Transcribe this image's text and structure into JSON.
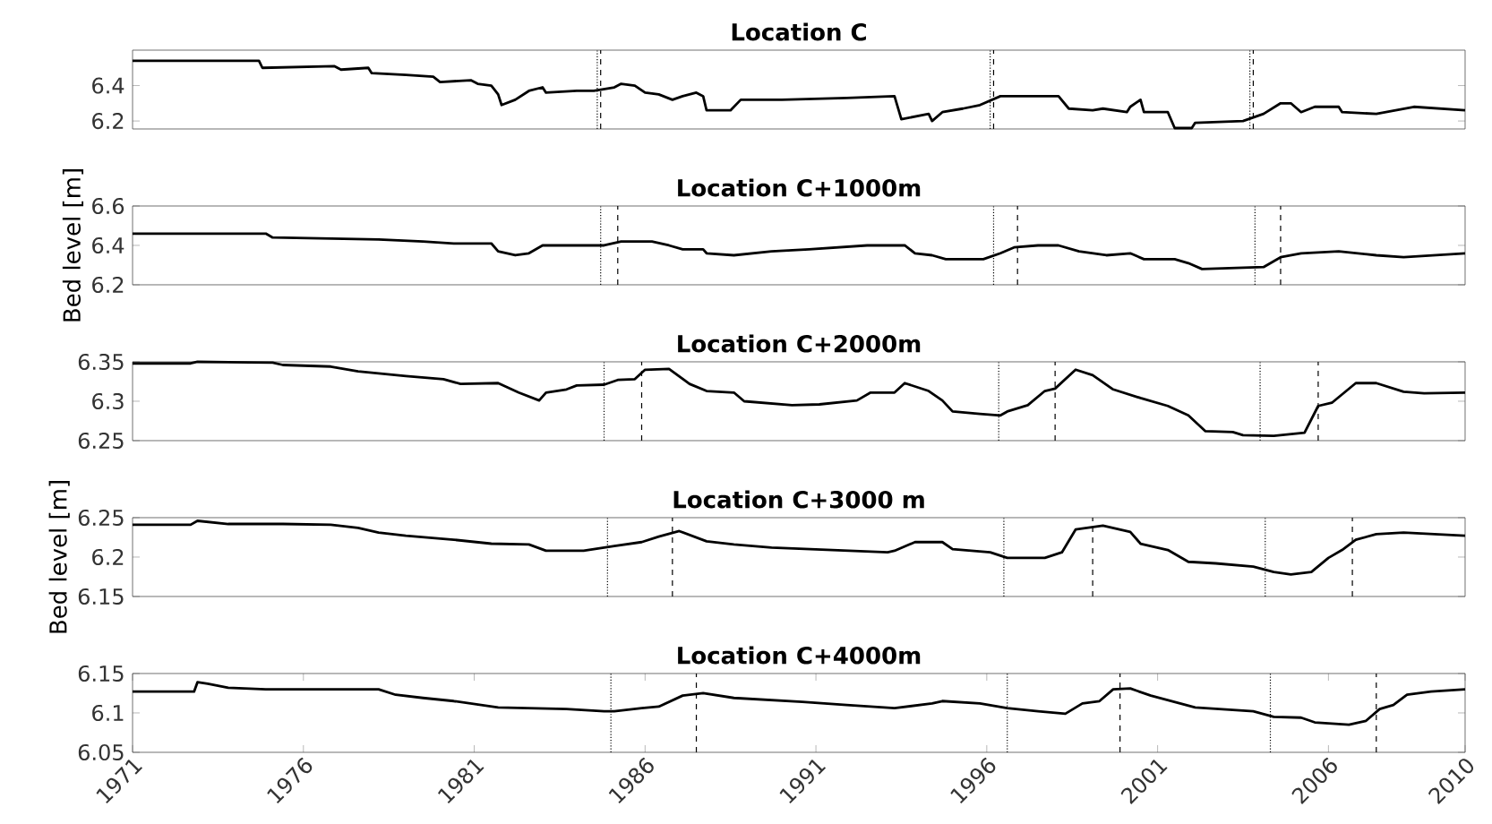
{
  "chart_data": [
    {
      "type": "line",
      "title": "Location C",
      "color": "#000000",
      "xlim": [
        1971,
        2010
      ],
      "ylim": [
        6.155,
        6.6
      ],
      "yticks": [
        6.2,
        6.4
      ],
      "tick_labels": "y",
      "x": [
        1971.0,
        1974.7,
        1974.8,
        1976.9,
        1977.1,
        1977.9,
        1978.0,
        1979.0,
        1979.8,
        1980.0,
        1980.9,
        1981.1,
        1981.5,
        1981.7,
        1981.8,
        1982.2,
        1982.6,
        1983.0,
        1983.1,
        1984.0,
        1984.5,
        1985.1,
        1985.3,
        1985.7,
        1986.0,
        1986.4,
        1986.8,
        1987.1,
        1987.5,
        1987.7,
        1987.8,
        1988.5,
        1988.8,
        1990.0,
        1991.9,
        1993.3,
        1993.5,
        1994.3,
        1994.4,
        1994.7,
        1995.3,
        1995.8,
        1996.4,
        1996.9,
        1998.1,
        1998.4,
        1999.1,
        1999.4,
        2000.1,
        2000.2,
        2000.5,
        2000.6,
        2001.3,
        2001.5,
        2002.0,
        2002.1,
        2003.5,
        2004.1,
        2004.6,
        2004.9,
        2005.2,
        2005.6,
        2006.3,
        2006.4,
        2007.4,
        2008.5,
        2010.0
      ],
      "values": [
        6.54,
        6.54,
        6.5,
        6.51,
        6.49,
        6.5,
        6.47,
        6.46,
        6.45,
        6.42,
        6.43,
        6.41,
        6.4,
        6.35,
        6.29,
        6.32,
        6.37,
        6.39,
        6.36,
        6.37,
        6.37,
        6.39,
        6.41,
        6.4,
        6.36,
        6.35,
        6.32,
        6.34,
        6.36,
        6.34,
        6.26,
        6.26,
        6.32,
        6.32,
        6.33,
        6.34,
        6.21,
        6.24,
        6.2,
        6.25,
        6.27,
        6.29,
        6.34,
        6.34,
        6.34,
        6.27,
        6.26,
        6.27,
        6.25,
        6.28,
        6.32,
        6.25,
        6.25,
        6.16,
        6.16,
        6.19,
        6.2,
        6.24,
        6.3,
        6.3,
        6.25,
        6.28,
        6.28,
        6.25,
        6.24,
        6.28,
        6.26
      ],
      "ref_lines": [
        {
          "axis": "x",
          "value": 1984.6,
          "line_style": "dotted",
          "color": "#000000"
        },
        {
          "axis": "x",
          "value": 1984.7,
          "line_style": "dashed",
          "color": "#000000"
        },
        {
          "axis": "x",
          "value": 1996.1,
          "line_style": "dotted",
          "color": "#000000"
        },
        {
          "axis": "x",
          "value": 1996.2,
          "line_style": "dashed",
          "color": "#000000"
        },
        {
          "axis": "x",
          "value": 2003.7,
          "line_style": "dotted",
          "color": "#000000"
        },
        {
          "axis": "x",
          "value": 2003.8,
          "line_style": "dashed",
          "color": "#000000"
        }
      ]
    },
    {
      "type": "line",
      "title": "Location C+1000m",
      "ylabel": "Bed level [m]",
      "color": "#000000",
      "xlim": [
        1971,
        2010
      ],
      "ylim": [
        6.2,
        6.6
      ],
      "yticks": [
        6.2,
        6.4,
        6.6
      ],
      "tick_labels": "y",
      "x": [
        1971.0,
        1974.9,
        1975.1,
        1978.2,
        1979.5,
        1980.4,
        1981.5,
        1981.7,
        1982.2,
        1982.6,
        1983.0,
        1984.8,
        1985.3,
        1986.2,
        1986.7,
        1987.1,
        1987.7,
        1987.8,
        1988.6,
        1989.7,
        1990.8,
        1992.5,
        1993.1,
        1993.6,
        1993.9,
        1994.4,
        1994.8,
        1995.9,
        1996.4,
        1996.8,
        1997.5,
        1998.1,
        1998.7,
        1999.5,
        2000.2,
        2000.6,
        2001.5,
        2001.9,
        2002.3,
        2004.1,
        2004.6,
        2005.2,
        2006.3,
        2007.4,
        2008.2,
        2010.0
      ],
      "values": [
        6.46,
        6.46,
        6.44,
        6.43,
        6.42,
        6.41,
        6.41,
        6.37,
        6.35,
        6.36,
        6.4,
        6.4,
        6.42,
        6.42,
        6.4,
        6.38,
        6.38,
        6.36,
        6.35,
        6.37,
        6.38,
        6.4,
        6.4,
        6.4,
        6.36,
        6.35,
        6.33,
        6.33,
        6.36,
        6.39,
        6.4,
        6.4,
        6.37,
        6.35,
        6.36,
        6.33,
        6.33,
        6.31,
        6.28,
        6.29,
        6.34,
        6.36,
        6.37,
        6.35,
        6.34,
        6.36
      ],
      "ref_lines": [
        {
          "axis": "x",
          "value": 1984.7,
          "line_style": "dotted",
          "color": "#000000"
        },
        {
          "axis": "x",
          "value": 1985.2,
          "line_style": "dashed",
          "color": "#000000"
        },
        {
          "axis": "x",
          "value": 1996.2,
          "line_style": "dotted",
          "color": "#000000"
        },
        {
          "axis": "x",
          "value": 1996.9,
          "line_style": "dashed",
          "color": "#000000"
        },
        {
          "axis": "x",
          "value": 2003.85,
          "line_style": "dotted",
          "color": "#000000"
        },
        {
          "axis": "x",
          "value": 2004.6,
          "line_style": "dashed",
          "color": "#000000"
        }
      ]
    },
    {
      "type": "line",
      "title": "Location C+2000m",
      "color": "#000000",
      "xlim": [
        1971,
        2010
      ],
      "ylim": [
        6.25,
        6.35
      ],
      "yticks": [
        6.25,
        6.3,
        6.35
      ],
      "tick_labels": "y",
      "x": [
        1971.0,
        1972.7,
        1972.9,
        1975.1,
        1975.4,
        1976.8,
        1977.6,
        1979.0,
        1980.1,
        1980.6,
        1981.7,
        1982.3,
        1982.9,
        1983.1,
        1983.7,
        1984.0,
        1984.8,
        1985.2,
        1985.7,
        1986.0,
        1986.7,
        1987.3,
        1987.8,
        1988.6,
        1988.9,
        1990.3,
        1991.1,
        1992.2,
        1992.6,
        1993.3,
        1993.6,
        1994.3,
        1994.7,
        1995.0,
        1995.8,
        1996.4,
        1996.6,
        1997.2,
        1997.7,
        1998.0,
        1998.6,
        1999.1,
        1999.7,
        2000.5,
        2001.3,
        2001.9,
        2002.4,
        2003.2,
        2003.5,
        2004.4,
        2005.3,
        2005.7,
        2006.1,
        2006.8,
        2007.4,
        2008.2,
        2008.8,
        2010.0
      ],
      "values": [
        6.348,
        6.348,
        6.35,
        6.349,
        6.346,
        6.344,
        6.338,
        6.332,
        6.328,
        6.322,
        6.323,
        6.311,
        6.301,
        6.311,
        6.315,
        6.32,
        6.321,
        6.327,
        6.328,
        6.34,
        6.341,
        6.322,
        6.313,
        6.311,
        6.3,
        6.295,
        6.296,
        6.301,
        6.311,
        6.311,
        6.323,
        6.313,
        6.301,
        6.287,
        6.284,
        6.282,
        6.287,
        6.295,
        6.313,
        6.316,
        6.34,
        6.333,
        6.315,
        6.304,
        6.294,
        6.282,
        6.262,
        6.261,
        6.257,
        6.256,
        6.26,
        6.294,
        6.298,
        6.323,
        6.323,
        6.312,
        6.31,
        6.311
      ],
      "ref_lines": [
        {
          "axis": "x",
          "value": 1984.8,
          "line_style": "dotted",
          "color": "#000000"
        },
        {
          "axis": "x",
          "value": 1985.9,
          "line_style": "dashed",
          "color": "#000000"
        },
        {
          "axis": "x",
          "value": 1996.35,
          "line_style": "dotted",
          "color": "#000000"
        },
        {
          "axis": "x",
          "value": 1998.0,
          "line_style": "dashed",
          "color": "#000000"
        },
        {
          "axis": "x",
          "value": 2004.0,
          "line_style": "dotted",
          "color": "#000000"
        },
        {
          "axis": "x",
          "value": 2005.7,
          "line_style": "dashed",
          "color": "#000000"
        }
      ]
    },
    {
      "type": "line",
      "title": "Location C+3000 m",
      "ylabel": "Bed level [m]",
      "color": "#000000",
      "xlim": [
        1971,
        2010
      ],
      "ylim": [
        6.15,
        6.25
      ],
      "yticks": [
        6.15,
        6.2,
        6.25
      ],
      "tick_labels": "y",
      "x": [
        1971.0,
        1972.7,
        1972.9,
        1973.8,
        1975.4,
        1976.8,
        1977.6,
        1978.2,
        1979.0,
        1980.4,
        1981.5,
        1982.6,
        1983.1,
        1984.2,
        1985.1,
        1985.9,
        1986.4,
        1987.0,
        1987.8,
        1988.6,
        1989.7,
        1991.4,
        1993.1,
        1993.3,
        1993.9,
        1994.7,
        1995.0,
        1996.1,
        1996.6,
        1997.7,
        1998.2,
        1998.6,
        1999.4,
        2000.2,
        2000.5,
        2001.3,
        2001.9,
        2002.7,
        2003.8,
        2004.4,
        2004.9,
        2005.5,
        2006.0,
        2006.4,
        2006.8,
        2007.4,
        2008.2,
        2010.0
      ],
      "values": [
        6.241,
        6.241,
        6.246,
        6.242,
        6.242,
        6.241,
        6.237,
        6.231,
        6.227,
        6.222,
        6.217,
        6.216,
        6.208,
        6.208,
        6.214,
        6.219,
        6.226,
        6.233,
        6.22,
        6.216,
        6.212,
        6.209,
        6.206,
        6.208,
        6.219,
        6.219,
        6.21,
        6.206,
        6.199,
        6.199,
        6.206,
        6.235,
        6.24,
        6.232,
        6.217,
        6.209,
        6.194,
        6.192,
        6.188,
        6.181,
        6.178,
        6.181,
        6.199,
        6.209,
        6.222,
        6.229,
        6.231,
        6.227
      ],
      "ref_lines": [
        {
          "axis": "x",
          "value": 1984.9,
          "line_style": "dotted",
          "color": "#000000"
        },
        {
          "axis": "x",
          "value": 1986.8,
          "line_style": "dashed",
          "color": "#000000"
        },
        {
          "axis": "x",
          "value": 1996.5,
          "line_style": "dotted",
          "color": "#000000"
        },
        {
          "axis": "x",
          "value": 1999.1,
          "line_style": "dashed",
          "color": "#000000"
        },
        {
          "axis": "x",
          "value": 2004.15,
          "line_style": "dotted",
          "color": "#000000"
        },
        {
          "axis": "x",
          "value": 2006.7,
          "line_style": "dashed",
          "color": "#000000"
        }
      ]
    },
    {
      "type": "line",
      "title": "Location C+4000m",
      "color": "#000000",
      "xlim": [
        1971,
        2010
      ],
      "ylim": [
        6.05,
        6.15
      ],
      "yticks": [
        6.05,
        6.1,
        6.15
      ],
      "xticks": [
        1971,
        1976,
        1981,
        1986,
        1991,
        1996,
        2001,
        2006,
        2010
      ],
      "x": [
        1971.0,
        1972.8,
        1972.9,
        1973.2,
        1973.8,
        1974.9,
        1978.2,
        1978.7,
        1979.5,
        1980.4,
        1981.7,
        1983.7,
        1984.8,
        1985.1,
        1985.9,
        1986.4,
        1987.1,
        1987.7,
        1988.6,
        1990.6,
        1991.9,
        1993.3,
        1994.4,
        1994.7,
        1995.8,
        1996.6,
        1997.5,
        1998.3,
        1998.8,
        1999.3,
        1999.7,
        2000.2,
        2000.8,
        2002.1,
        2003.8,
        2004.4,
        2005.2,
        2005.6,
        2006.6,
        2007.1,
        2007.5,
        2007.9,
        2008.3,
        2009.0,
        2010.0
      ],
      "values": [
        6.127,
        6.127,
        6.139,
        6.137,
        6.132,
        6.13,
        6.13,
        6.123,
        6.119,
        6.115,
        6.107,
        6.105,
        6.102,
        6.102,
        6.106,
        6.108,
        6.122,
        6.125,
        6.119,
        6.114,
        6.11,
        6.106,
        6.112,
        6.115,
        6.112,
        6.106,
        6.102,
        6.099,
        6.112,
        6.115,
        6.13,
        6.131,
        6.122,
        6.107,
        6.102,
        6.095,
        6.094,
        6.088,
        6.085,
        6.09,
        6.105,
        6.11,
        6.123,
        6.127,
        6.13
      ],
      "ref_lines": [
        {
          "axis": "x",
          "value": 1985.0,
          "line_style": "dotted",
          "color": "#000000"
        },
        {
          "axis": "x",
          "value": 1987.5,
          "line_style": "dashed",
          "color": "#000000"
        },
        {
          "axis": "x",
          "value": 1996.6,
          "line_style": "dotted",
          "color": "#000000"
        },
        {
          "axis": "x",
          "value": 1999.9,
          "line_style": "dashed",
          "color": "#000000"
        },
        {
          "axis": "x",
          "value": 2004.3,
          "line_style": "dotted",
          "color": "#000000"
        },
        {
          "axis": "x",
          "value": 2007.4,
          "line_style": "dashed",
          "color": "#000000"
        }
      ]
    }
  ]
}
